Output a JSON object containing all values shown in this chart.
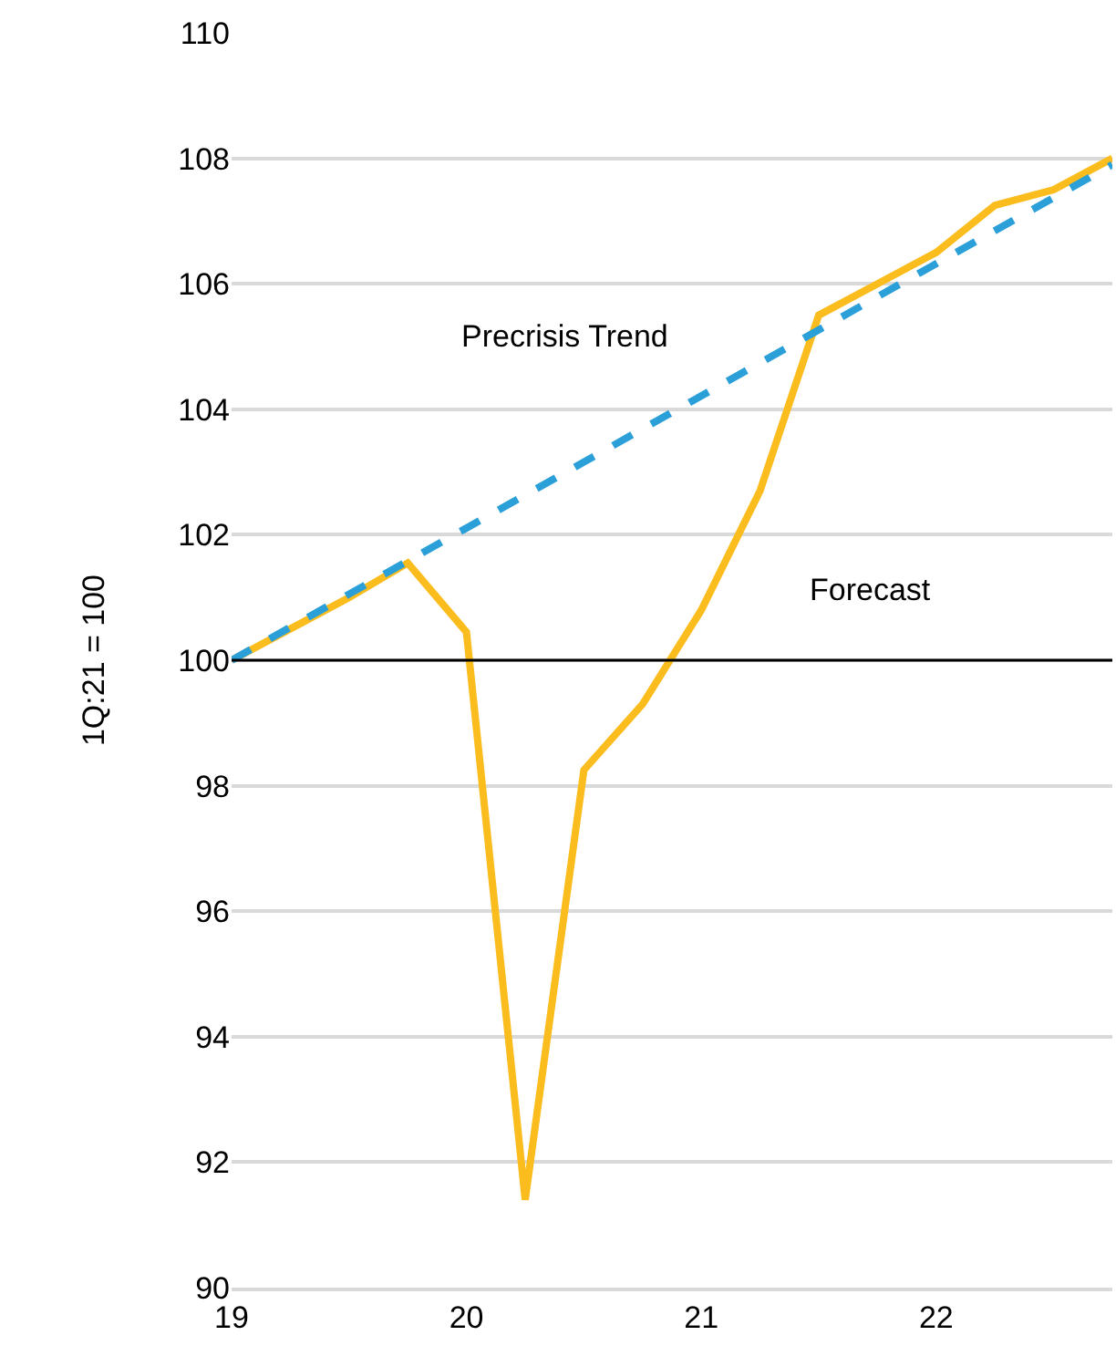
{
  "chart_data": {
    "type": "line",
    "ylabel": "1Q:21 = 100",
    "series": [
      {
        "name": "Forecast",
        "color": "#fbbc1e",
        "x": [
          19,
          19.25,
          19.5,
          19.75,
          20,
          20.25,
          20.5,
          20.75,
          21,
          21.25,
          21.5,
          21.75,
          22,
          22.25,
          22.5,
          22.75
        ],
        "values": [
          100,
          100.5,
          101,
          101.55,
          100.45,
          91.4,
          98.25,
          99.3,
          100.8,
          102.7,
          105.5,
          106,
          106.5,
          107.25,
          107.5,
          108
        ]
      },
      {
        "name": "Precrisis Trend",
        "color": "#2a9fd8",
        "line_style": "dashed",
        "x": [
          19,
          22.75
        ],
        "values": [
          100,
          107.9
        ]
      }
    ],
    "ref_lines": [
      {
        "axis": "y",
        "value": 100,
        "color": "#000000"
      }
    ],
    "xlim": [
      19,
      22.75
    ],
    "xticks": [
      19,
      20,
      21,
      22
    ],
    "ylim": [
      90,
      110
    ],
    "yticks": [
      90,
      92,
      94,
      96,
      98,
      100,
      102,
      104,
      106,
      108,
      110
    ],
    "grid": "y",
    "marker": "none"
  }
}
